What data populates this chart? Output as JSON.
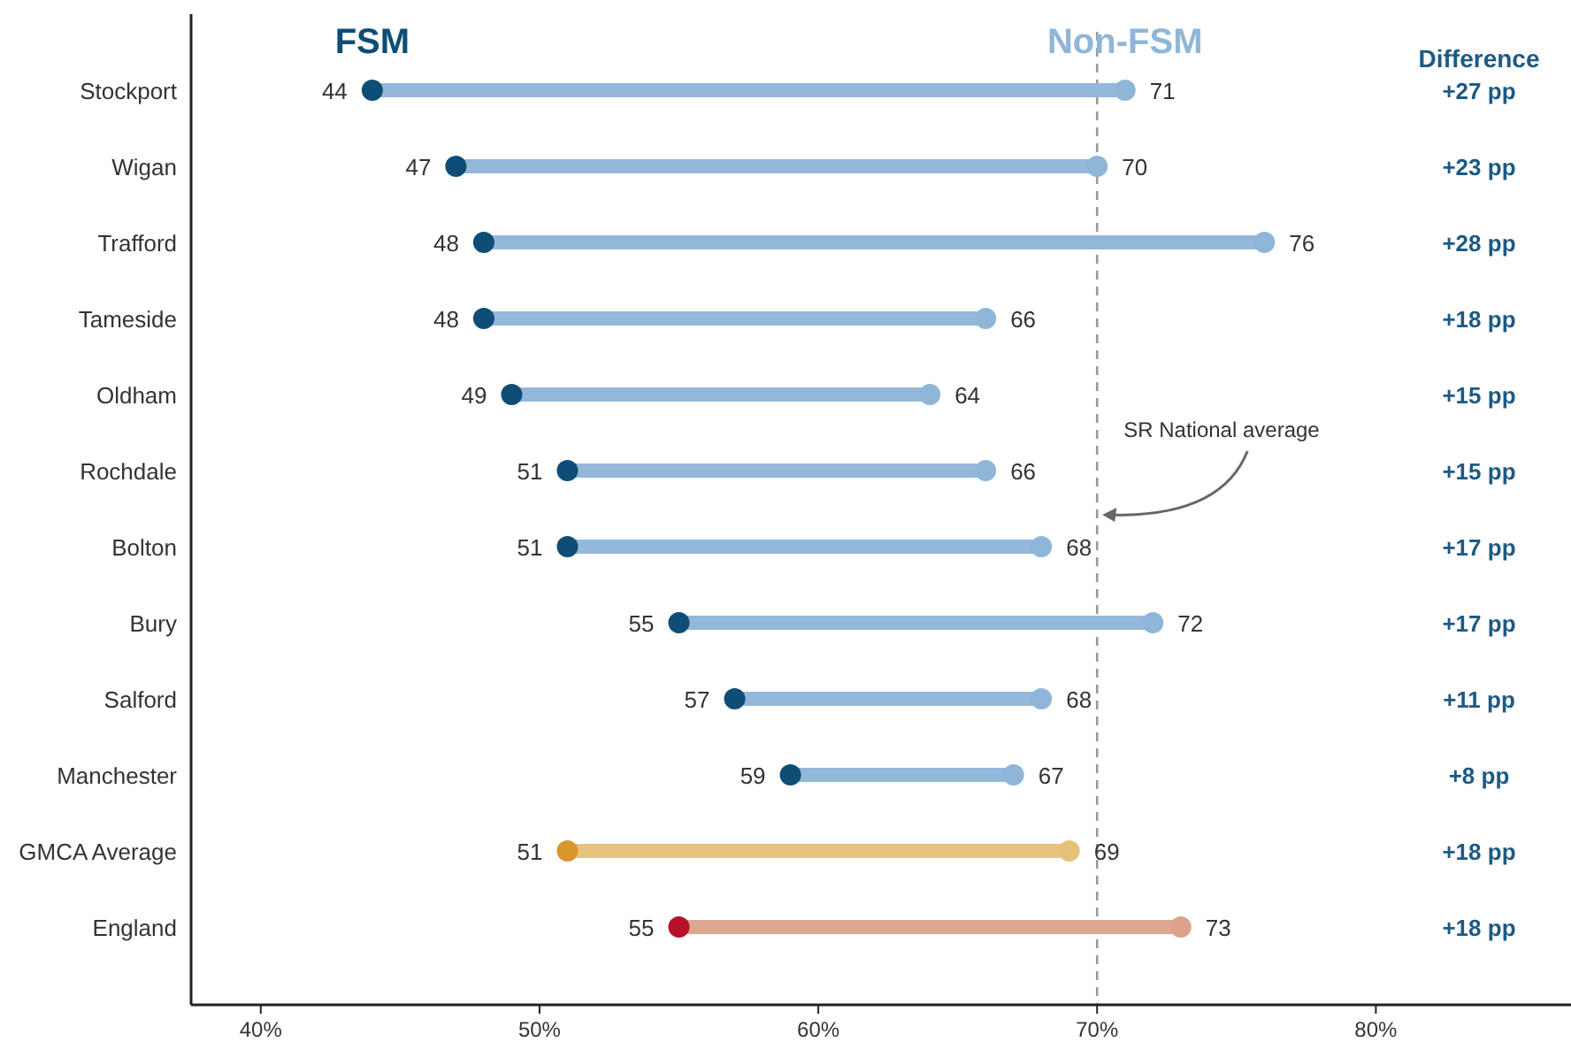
{
  "chart_data": {
    "type": "scatter",
    "orientation": "horizontal",
    "categories": [
      "Stockport",
      "Wigan",
      "Trafford",
      "Tameside",
      "Oldham",
      "Rochdale",
      "Bolton",
      "Bury",
      "Salford",
      "Manchester",
      "GMCA Average",
      "England"
    ],
    "series": [
      {
        "type": "bar",
        "base": [
          44,
          47,
          48,
          48,
          49,
          51,
          51,
          55,
          57,
          59,
          51,
          55
        ],
        "values": [
          27,
          23,
          28,
          18,
          15,
          15,
          17,
          17,
          11,
          8,
          18,
          18
        ],
        "colors": [
          "#93b8da",
          "#93b8da",
          "#93b8da",
          "#93b8da",
          "#93b8da",
          "#93b8da",
          "#93b8da",
          "#93b8da",
          "#93b8da",
          "#93b8da",
          "#e6c47f",
          "#dda792"
        ],
        "value_labels": [
          "+27 pp",
          "+23 pp",
          "+28 pp",
          "+18 pp",
          "+15 pp",
          "+15 pp",
          "+17 pp",
          "+17 pp",
          "+11 pp",
          "+8 pp",
          "+18 pp",
          "+18 pp"
        ]
      },
      {
        "name": "FSM",
        "color": "#0e4d75",
        "colors": [
          "#0e4d75",
          "#0e4d75",
          "#0e4d75",
          "#0e4d75",
          "#0e4d75",
          "#0e4d75",
          "#0e4d75",
          "#0e4d75",
          "#0e4d75",
          "#0e4d75",
          "#d9962a",
          "#b5112a"
        ],
        "values": [
          44,
          47,
          48,
          48,
          49,
          51,
          51,
          55,
          57,
          59,
          51,
          55
        ]
      },
      {
        "name": "Non-FSM",
        "color": "#8fb6d8",
        "colors": [
          "#8fb6d8",
          "#8fb6d8",
          "#8fb6d8",
          "#8fb6d8",
          "#8fb6d8",
          "#8fb6d8",
          "#8fb6d8",
          "#8fb6d8",
          "#8fb6d8",
          "#8fb6d8",
          "#e5c27a",
          "#dca28c"
        ],
        "values": [
          71,
          70,
          76,
          66,
          64,
          66,
          68,
          72,
          68,
          67,
          69,
          73
        ]
      }
    ],
    "data_labels": true,
    "xlim": [
      37.5,
      87
    ],
    "xticks": [
      {
        "value": 40,
        "label": "40%"
      },
      {
        "value": 50,
        "label": "50%"
      },
      {
        "value": 60,
        "label": "60%"
      },
      {
        "value": 70,
        "label": "70%"
      },
      {
        "value": 80,
        "label": "80%"
      }
    ],
    "ref_lines": [
      {
        "axis": "x",
        "value": 70,
        "label": "SR National average",
        "line_style": "dashed",
        "color": "#999999"
      }
    ],
    "annotations": [
      "Difference"
    ],
    "legend": "top",
    "grid": false,
    "marker": "circle"
  }
}
